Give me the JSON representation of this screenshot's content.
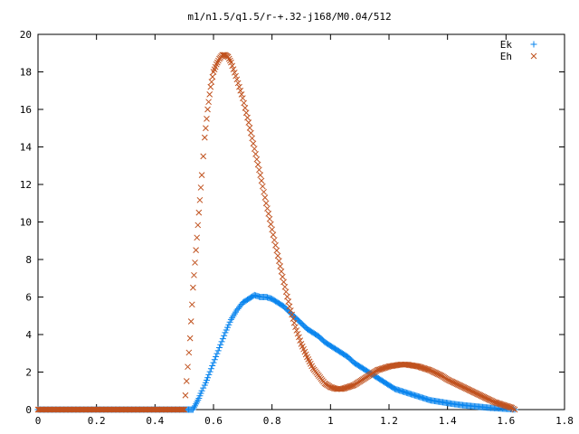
{
  "chart_data": {
    "type": "scatter",
    "title": "m1/n1.5/q1.5/r-+.32-j168/M0.04/512",
    "xlim": [
      0,
      1.8
    ],
    "ylim": [
      0,
      20
    ],
    "xticks": [
      0,
      0.2,
      0.4,
      0.6,
      0.8,
      1,
      1.2,
      1.4,
      1.6,
      1.8
    ],
    "xtick_labels": [
      "0",
      "0.2",
      "0.4",
      "0.6",
      "0.8",
      "1",
      "1.2",
      "1.4",
      "1.6",
      "1.8"
    ],
    "yticks": [
      0,
      2,
      4,
      6,
      8,
      10,
      12,
      14,
      16,
      18,
      20
    ],
    "ytick_labels": [
      "0",
      "2",
      "4",
      "6",
      "8",
      "10",
      "12",
      "14",
      "16",
      "18",
      "20"
    ],
    "grid": false,
    "legend_position": "top-right",
    "series": [
      {
        "name": "Ek",
        "marker": "+",
        "color": "#0a85ee",
        "x": [
          0.0,
          0.1,
          0.2,
          0.3,
          0.4,
          0.5,
          0.53,
          0.54,
          0.55,
          0.56,
          0.57,
          0.58,
          0.6,
          0.62,
          0.64,
          0.66,
          0.68,
          0.7,
          0.72,
          0.74,
          0.76,
          0.78,
          0.8,
          0.82,
          0.84,
          0.86,
          0.88,
          0.9,
          0.92,
          0.94,
          0.96,
          0.98,
          1.0,
          1.02,
          1.04,
          1.06,
          1.08,
          1.1,
          1.12,
          1.14,
          1.16,
          1.18,
          1.2,
          1.22,
          1.24,
          1.26,
          1.28,
          1.3,
          1.32,
          1.34,
          1.36,
          1.38,
          1.4,
          1.42,
          1.44,
          1.46,
          1.48,
          1.5,
          1.52,
          1.54,
          1.56,
          1.58,
          1.6,
          1.62,
          1.63
        ],
        "y": [
          0.0,
          0.0,
          0.0,
          0.0,
          0.0,
          0.0,
          0.0,
          0.3,
          0.6,
          1.0,
          1.3,
          1.7,
          2.5,
          3.3,
          4.1,
          4.8,
          5.3,
          5.7,
          5.9,
          6.1,
          6.0,
          6.0,
          5.9,
          5.7,
          5.5,
          5.2,
          4.9,
          4.6,
          4.3,
          4.1,
          3.9,
          3.6,
          3.4,
          3.2,
          3.0,
          2.8,
          2.5,
          2.3,
          2.1,
          1.9,
          1.7,
          1.5,
          1.3,
          1.1,
          1.0,
          0.9,
          0.8,
          0.7,
          0.6,
          0.5,
          0.45,
          0.4,
          0.35,
          0.3,
          0.26,
          0.22,
          0.19,
          0.16,
          0.13,
          0.1,
          0.08,
          0.06,
          0.04,
          0.02,
          0.0
        ]
      },
      {
        "name": "Eh",
        "marker": "×",
        "color": "#c0521f",
        "x": [
          0.0,
          0.1,
          0.2,
          0.3,
          0.4,
          0.5,
          0.52,
          0.53,
          0.54,
          0.55,
          0.56,
          0.57,
          0.58,
          0.59,
          0.6,
          0.61,
          0.62,
          0.63,
          0.64,
          0.65,
          0.66,
          0.68,
          0.7,
          0.72,
          0.74,
          0.76,
          0.78,
          0.8,
          0.82,
          0.84,
          0.86,
          0.88,
          0.9,
          0.92,
          0.94,
          0.96,
          0.98,
          1.0,
          1.02,
          1.04,
          1.06,
          1.08,
          1.1,
          1.12,
          1.14,
          1.16,
          1.18,
          1.2,
          1.22,
          1.24,
          1.26,
          1.28,
          1.3,
          1.32,
          1.34,
          1.36,
          1.38,
          1.4,
          1.42,
          1.44,
          1.46,
          1.48,
          1.5,
          1.52,
          1.54,
          1.56,
          1.58,
          1.6,
          1.62,
          1.63
        ],
        "y": [
          0.0,
          0.0,
          0.0,
          0.0,
          0.0,
          0.0,
          3.8,
          6.5,
          8.5,
          10.5,
          12.5,
          14.5,
          16.0,
          17.2,
          18.0,
          18.4,
          18.7,
          18.9,
          18.9,
          18.8,
          18.5,
          17.6,
          16.6,
          15.3,
          13.9,
          12.5,
          11.0,
          9.6,
          8.2,
          6.8,
          5.5,
          4.4,
          3.5,
          2.8,
          2.2,
          1.8,
          1.4,
          1.2,
          1.1,
          1.1,
          1.2,
          1.3,
          1.5,
          1.7,
          1.9,
          2.1,
          2.2,
          2.3,
          2.35,
          2.4,
          2.4,
          2.35,
          2.3,
          2.2,
          2.1,
          1.95,
          1.8,
          1.6,
          1.45,
          1.3,
          1.15,
          1.0,
          0.85,
          0.7,
          0.55,
          0.4,
          0.3,
          0.2,
          0.1,
          0.0
        ]
      }
    ]
  }
}
